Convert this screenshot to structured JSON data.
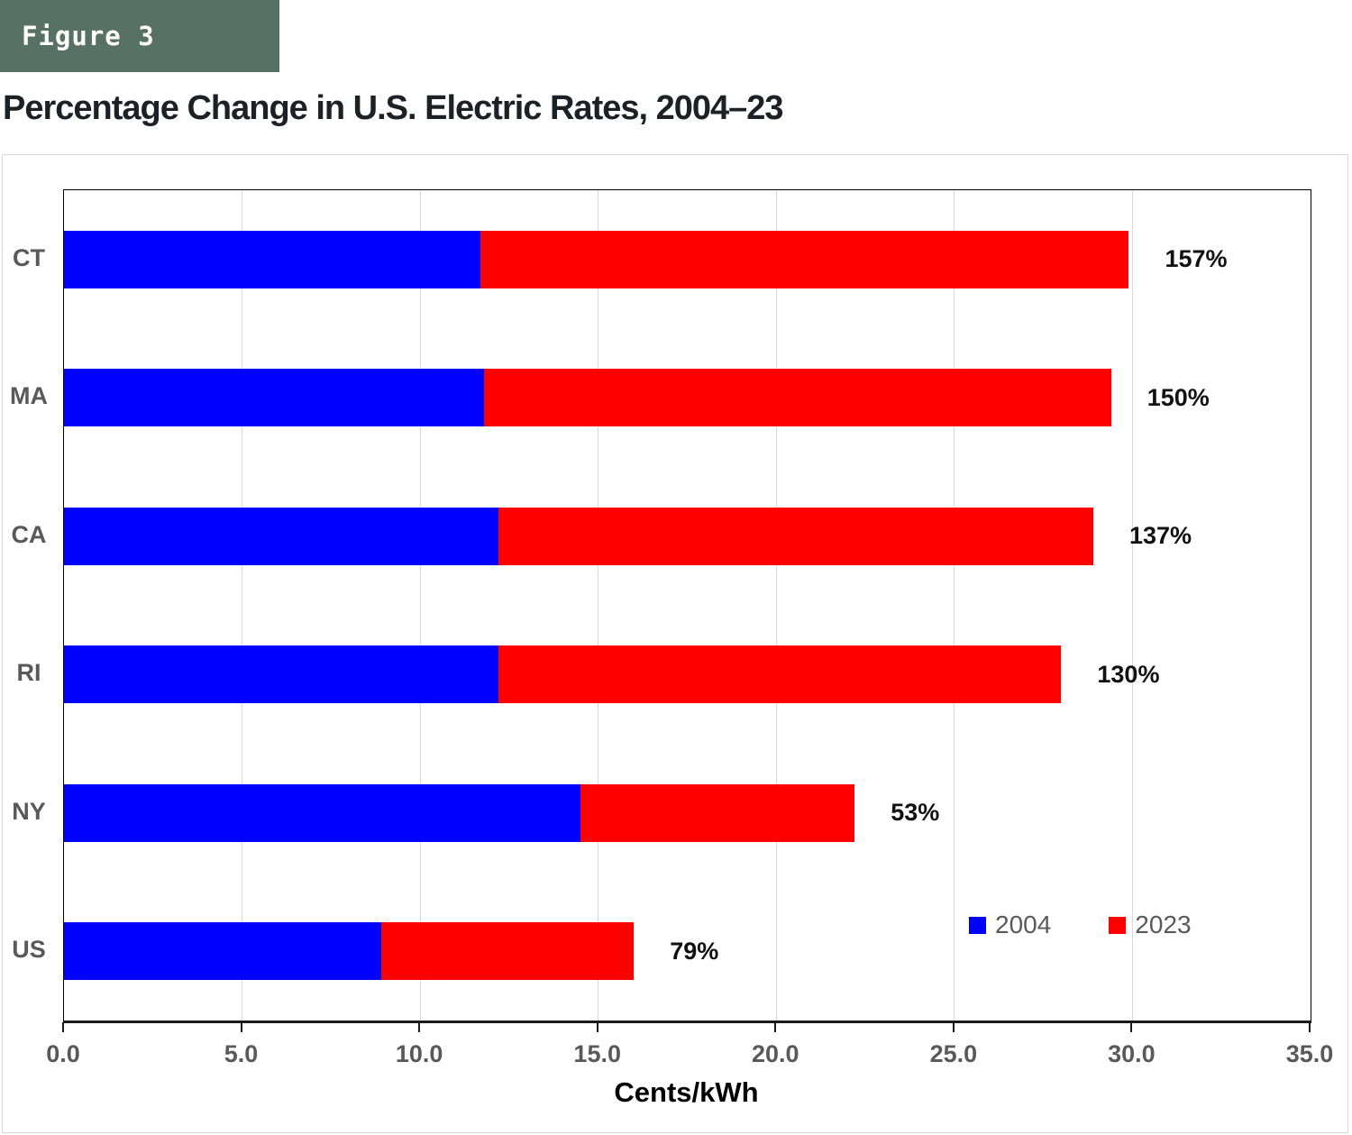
{
  "figure_label": "Figure 3",
  "title": "Percentage Change in U.S. Electric Rates, 2004–23",
  "colors": {
    "figure_box_green": "#577264",
    "bar_2004_blue": "#0000ff",
    "bar_2023_red": "#ff0000",
    "axis_text_gray": "#595959",
    "gridline_gray": "#d9d9d9"
  },
  "chart_data": {
    "type": "bar",
    "orientation": "horizontal",
    "stacked": true,
    "note": "Blue segment spans 0 to the 2004 rate; red segment spans from the 2004 rate to the 2023 rate (values are totals in cents/kWh).",
    "categories": [
      "CT",
      "MA",
      "CA",
      "RI",
      "NY",
      "US"
    ],
    "series": [
      {
        "name": "2004",
        "color": "#0000ff",
        "values": [
          11.7,
          11.8,
          12.2,
          12.2,
          14.5,
          8.9
        ]
      },
      {
        "name": "2023",
        "color": "#ff0000",
        "values": [
          29.9,
          29.4,
          28.9,
          28.0,
          22.2,
          16.0
        ]
      }
    ],
    "bar_labels": [
      "157%",
      "150%",
      "137%",
      "130%",
      "53%",
      "79%"
    ],
    "xlabel": "Cents/kWh",
    "xlim": [
      0,
      35
    ],
    "xtick_labels": [
      "0.0",
      "5.0",
      "10.0",
      "15.0",
      "20.0",
      "25.0",
      "30.0",
      "35.0"
    ],
    "xtick_values": [
      0,
      5,
      10,
      15,
      20,
      25,
      30,
      35
    ],
    "grid": true,
    "legend": [
      "2004",
      "2023"
    ],
    "legend_position": "inside-bottom-right"
  }
}
